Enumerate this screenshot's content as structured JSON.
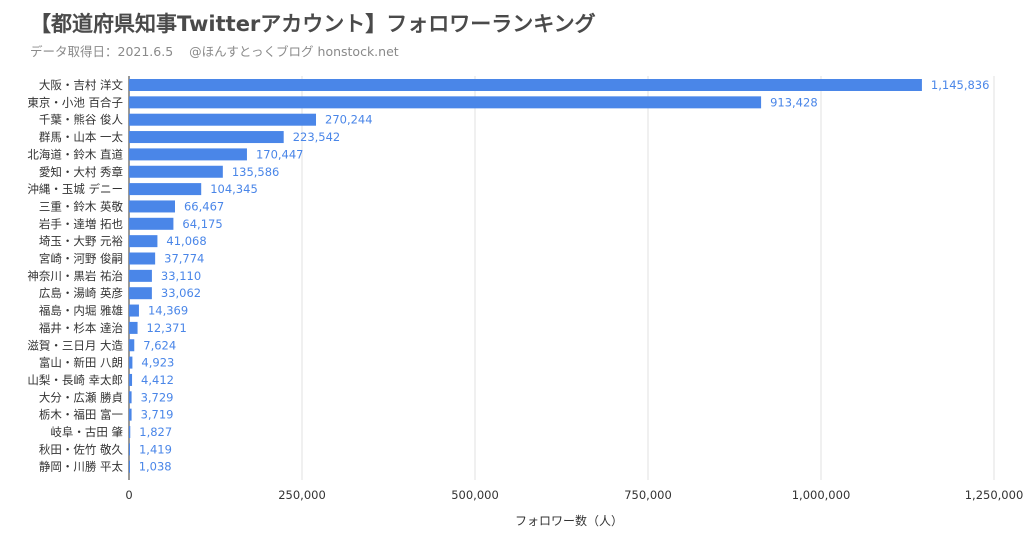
{
  "title": "【都道府県知事Twitterアカウント】フォロワーランキング",
  "subtitle": {
    "date": "データ取得日：2021.6.5",
    "source": "@ほんすとっくブログ honstock.net"
  },
  "colors": {
    "bar": "#4a86e8",
    "value_label": "#4a86e8",
    "axis_text": "#333333",
    "grid": "#e0e0e0"
  },
  "chart_data": {
    "type": "bar",
    "orientation": "horizontal",
    "title": "【都道府県知事Twitterアカウント】フォロワーランキング",
    "xlabel": "フォロワー数（人）",
    "ylabel": "",
    "xlim": [
      0,
      1250000
    ],
    "xticks": [
      0,
      250000,
      500000,
      750000,
      1000000,
      1250000
    ],
    "xtick_labels": [
      "0",
      "250,000",
      "500,000",
      "750,000",
      "1,000,000",
      "1,250,000"
    ],
    "grid": true,
    "categories": [
      "大阪・吉村 洋文",
      "東京・小池 百合子",
      "千葉・熊谷 俊人",
      "群馬・山本 一太",
      "北海道・鈴木 直道",
      "愛知・大村 秀章",
      "沖縄・玉城 デニー",
      "三重・鈴木 英敬",
      "岩手・達増 拓也",
      "埼玉・大野 元裕",
      "宮崎・河野 俊嗣",
      "神奈川・黒岩 祐治",
      "広島・湯崎 英彦",
      "福島・内堀 雅雄",
      "福井・杉本 達治",
      "滋賀・三日月 大造",
      "富山・新田 八朗",
      "山梨・長崎 幸太郎",
      "大分・広瀬 勝貞",
      "栃木・福田 富一",
      "岐阜・古田 肇",
      "秋田・佐竹 敬久",
      "静岡・川勝 平太"
    ],
    "values": [
      1145836,
      913428,
      270244,
      223542,
      170447,
      135586,
      104345,
      66467,
      64175,
      41068,
      37774,
      33110,
      33062,
      14369,
      12371,
      7624,
      4923,
      4412,
      3729,
      3719,
      1827,
      1419,
      1038
    ],
    "value_labels": [
      "1,145,836",
      "913,428",
      "270,244",
      "223,542",
      "170,447",
      "135,586",
      "104,345",
      "66,467",
      "64,175",
      "41,068",
      "37,774",
      "33,110",
      "33,062",
      "14,369",
      "12,371",
      "7,624",
      "4,923",
      "4,412",
      "3,729",
      "3,719",
      "1,827",
      "1,419",
      "1,038"
    ]
  }
}
